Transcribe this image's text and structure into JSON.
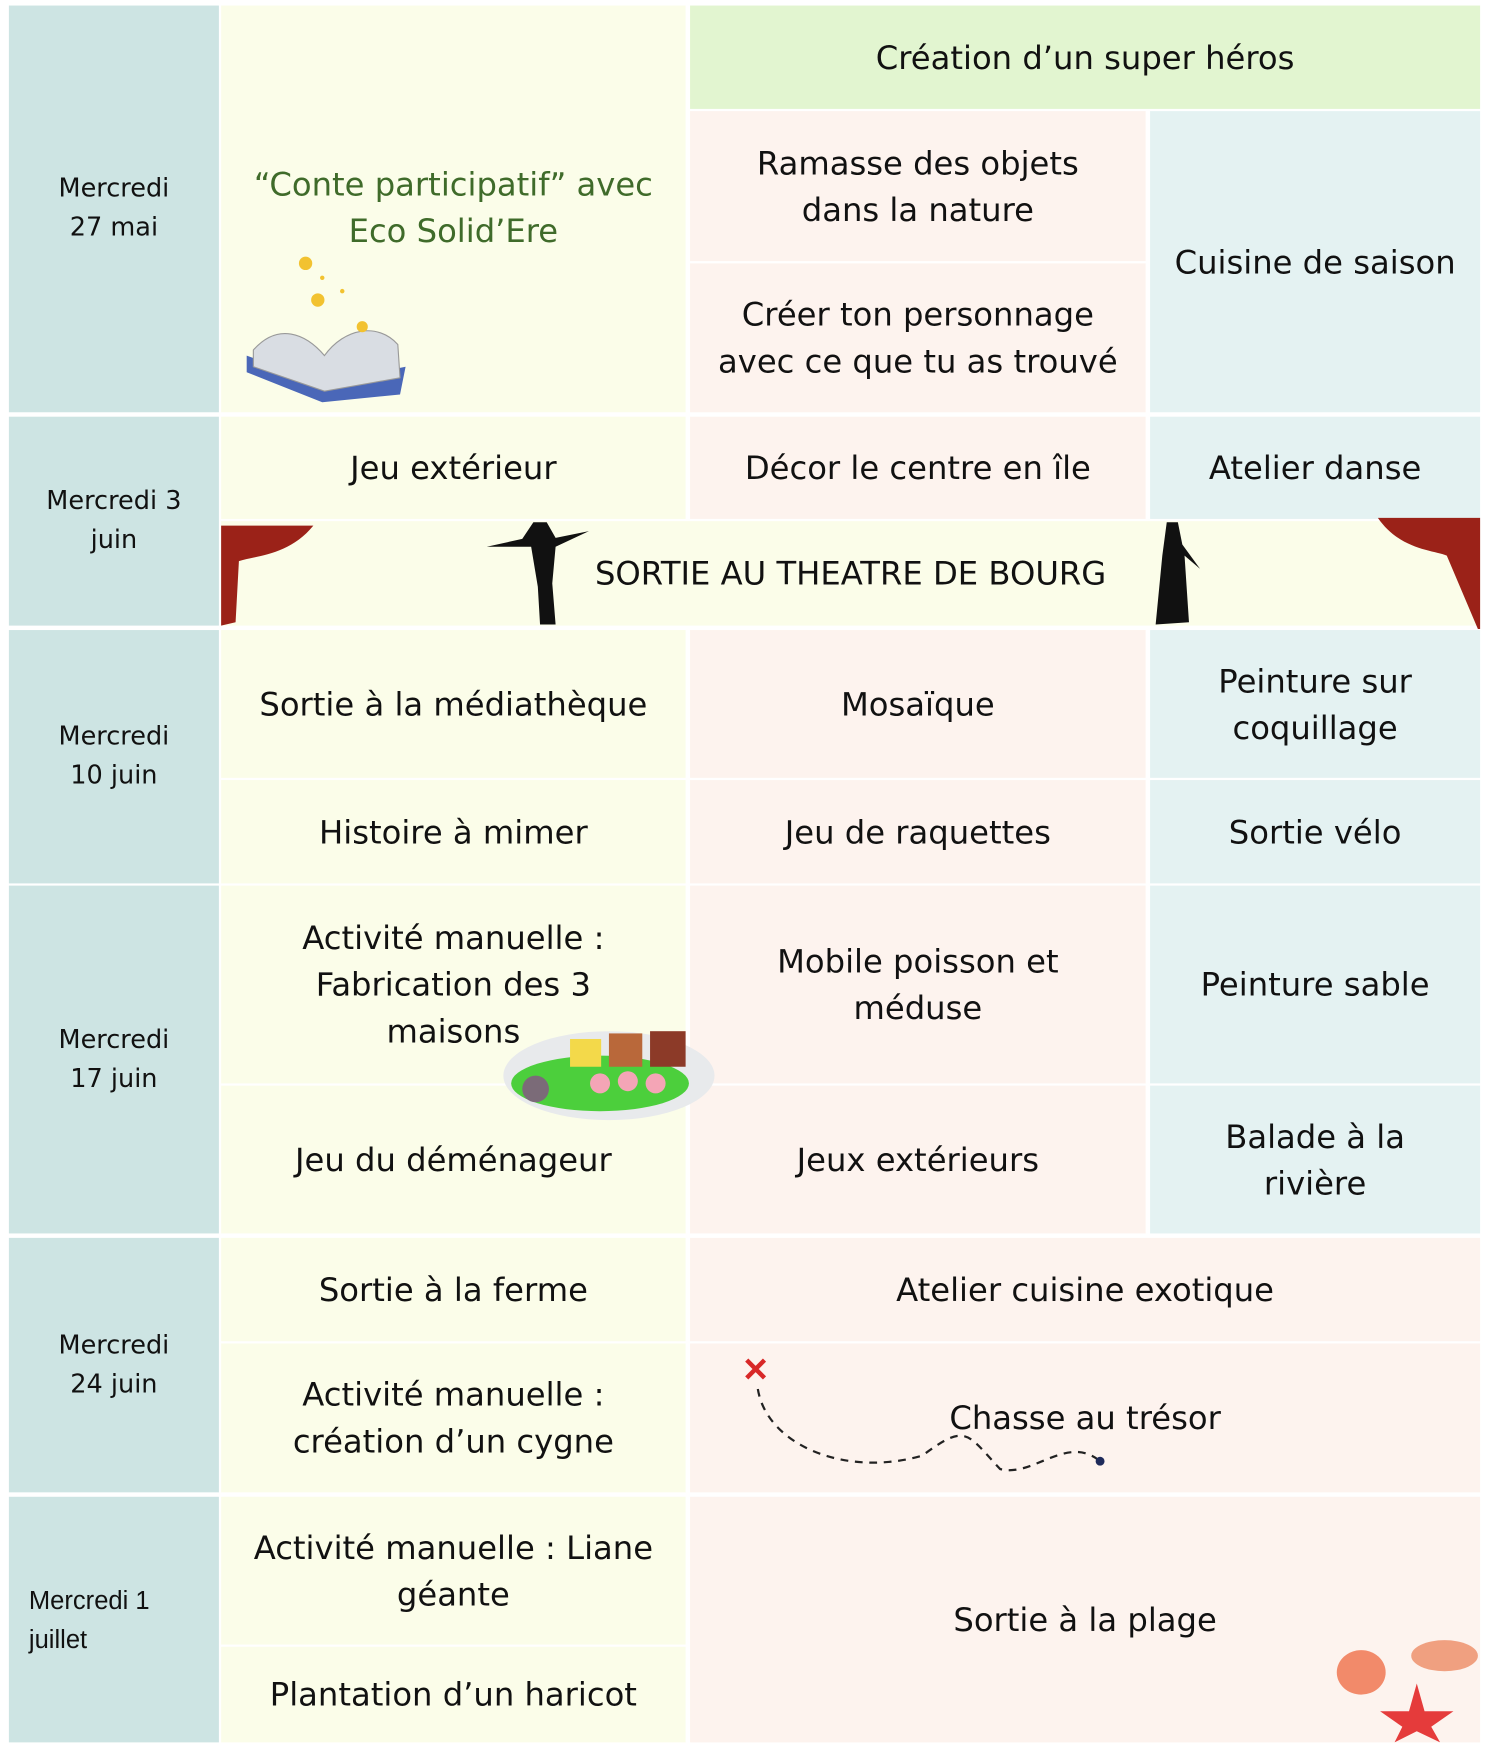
{
  "rows": [
    {
      "date": "Mercredi 27 mai",
      "activities": [
        "“Conte participatif” avec Eco Solid’Ere",
        "Création d’un super héros",
        "Ramasse des objets dans la nature",
        "Créer ton personnage avec ce que tu as trouvé",
        "Cuisine de saison"
      ]
    },
    {
      "date": "Mercredi 3 juin",
      "activities": [
        "Jeu extérieur",
        "Décor le centre en île",
        "Atelier danse",
        "SORTIE AU THEATRE DE BOURG"
      ]
    },
    {
      "date": "Mercredi 10 juin",
      "activities": [
        "Sortie à la médiathèque",
        "Mosaïque",
        "Peinture sur coquillage",
        "Histoire à mimer",
        "Jeu de raquettes",
        "Sortie vélo"
      ]
    },
    {
      "date": "Mercredi 17 juin",
      "activities": [
        "Activité manuelle : Fabrication des 3 maisons",
        "Mobile poisson et méduse",
        "Peinture sable",
        "Jeu du déménageur",
        "Jeux extérieurs",
        "Balade à la rivière"
      ]
    },
    {
      "date": "Mercredi 24 juin",
      "activities": [
        "Sortie à la ferme",
        "Atelier cuisine exotique",
        "Activité manuelle : création d’un cygne",
        "Chasse au trésor"
      ]
    },
    {
      "date": "Mercredi 1 juillet",
      "activities": [
        "Activité manuelle : Liane géante",
        "Sortie à la plage",
        "Plantation d’un haricot"
      ]
    }
  ]
}
